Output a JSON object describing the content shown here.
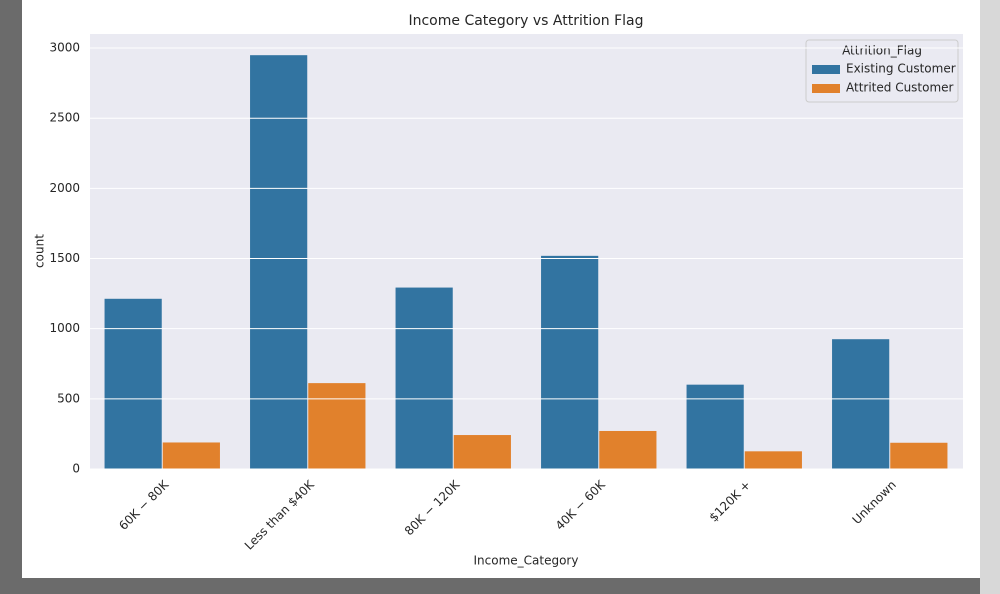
{
  "chart_data": {
    "type": "bar",
    "title": "Income Category vs Attrition Flag",
    "x_label": "Income_Category",
    "y_label": "count",
    "categories": [
      "60K − 80K",
      "Less than $40K",
      "80K − 120K",
      "40K − 60K",
      "$120K +",
      "Unknown"
    ],
    "series": [
      {
        "name": "Existing Customer",
        "color": "#3274a1",
        "values": [
          1213,
          2949,
          1293,
          1519,
          601,
          925
        ]
      },
      {
        "name": "Attrited Customer",
        "color": "#e1812c",
        "values": [
          189,
          612,
          242,
          271,
          126,
          187
        ]
      }
    ],
    "legend_title": "Attrition_Flag",
    "legend_position": "upper right",
    "ylim": [
      0,
      3100
    ],
    "yticks": [
      0,
      500,
      1000,
      1500,
      2000,
      2500,
      3000
    ],
    "grid": true
  }
}
